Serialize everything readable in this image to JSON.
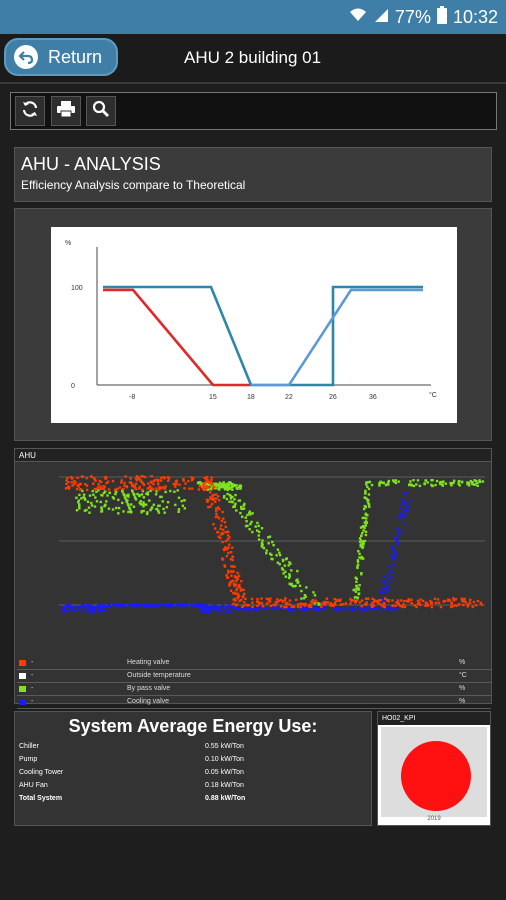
{
  "status": {
    "battery": "77%",
    "time": "10:32"
  },
  "app": {
    "return_label": "Return",
    "title": "AHU 2 building 01"
  },
  "toolbar": {
    "icons": [
      "refresh-icon",
      "print-icon",
      "search-icon"
    ]
  },
  "analysis": {
    "title": "AHU - ANALYSIS",
    "subtitle": "Efficiency Analysis compare to Theoretical"
  },
  "chart_data": [
    {
      "type": "line",
      "ylabel": "%",
      "xlabel": "°C",
      "x_ticks": [
        "-8",
        "15",
        "18",
        "22",
        "26",
        "36"
      ],
      "y_ticks": [
        "0",
        "100"
      ],
      "series": [
        {
          "color": "#e32626",
          "points": [
            [
              "-13",
              97
            ],
            [
              "-8",
              97
            ],
            [
              "15",
              0
            ],
            [
              "18",
              0
            ]
          ]
        },
        {
          "color": "#2e86a8",
          "points": [
            [
              "-13",
              100
            ],
            [
              "10",
              100
            ],
            [
              "18",
              0
            ],
            [
              "22",
              0
            ]
          ]
        },
        {
          "color": "#2e86a8",
          "points": [
            [
              "22",
              0
            ],
            [
              "26",
              0
            ],
            [
              "26",
              100
            ],
            [
              "40",
              100
            ]
          ]
        },
        {
          "color": "#5b9bd5",
          "points": [
            [
              "18",
              0
            ],
            [
              "22",
              0
            ],
            [
              "30",
              97
            ],
            [
              "40",
              97
            ]
          ]
        }
      ]
    },
    {
      "type": "scatter",
      "title": "AHU",
      "legend": [
        {
          "color": "#ff3b00",
          "marker": "-",
          "name": "Heating valve",
          "unit": "%"
        },
        {
          "color": "#ffffff",
          "marker": "-",
          "name": "Outside temperature",
          "unit": "°C"
        },
        {
          "color": "#7ee21e",
          "marker": "-",
          "name": "By pass valve",
          "unit": "%"
        },
        {
          "color": "#1a1aff",
          "marker": "-",
          "name": "Cooling valve",
          "unit": "%"
        }
      ]
    }
  ],
  "energy": {
    "title": "System Average Energy Use:",
    "rows": [
      {
        "name": "Chiller",
        "value": "0.55 kW/Ton"
      },
      {
        "name": "Pump",
        "value": "0.10 kW/Ton"
      },
      {
        "name": "Cooling Tower",
        "value": "0.05 kW/Ton"
      },
      {
        "name": "AHU Fan",
        "value": "0.18 kW/Ton"
      },
      {
        "name": "Total System",
        "value": "0.88 kW/Ton"
      }
    ]
  },
  "kpi": {
    "title": "HO02_KPI",
    "year": "2019",
    "color": "#ff1111"
  }
}
